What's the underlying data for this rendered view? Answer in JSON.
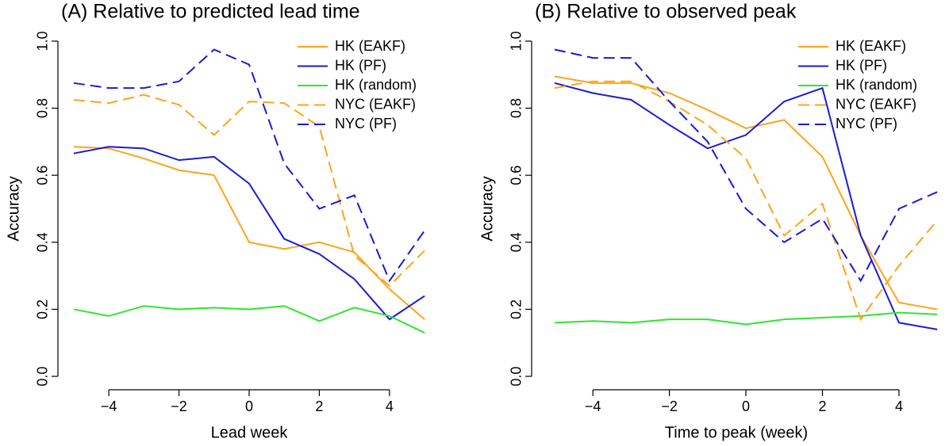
{
  "chart_data": [
    {
      "type": "line",
      "title": "(A) Relative to predicted lead time",
      "xlabel": "Lead week",
      "ylabel": "Accuracy",
      "x": [
        -5,
        -4,
        -3,
        -2,
        -1,
        0,
        1,
        2,
        3,
        4,
        5
      ],
      "xlim": [
        -5.45,
        5.45
      ],
      "ylim": [
        -0.04,
        1.04
      ],
      "xticks": [
        {
          "value": -4,
          "label": "−4"
        },
        {
          "value": -2,
          "label": "−2"
        },
        0,
        2,
        4
      ],
      "yticks": [
        {
          "value": 0,
          "label": "0.0"
        },
        0.2,
        0.4,
        0.6,
        0.8,
        {
          "value": 1,
          "label": "1.0"
        }
      ],
      "legend": "top-right",
      "series": [
        {
          "name": "HK (EAKF)",
          "color": "#ffa31a",
          "linestyle": "solid",
          "values": [
            0.685,
            0.68,
            0.65,
            0.615,
            0.6,
            0.4,
            0.38,
            0.4,
            0.37,
            0.26,
            0.17
          ]
        },
        {
          "name": "HK (PF)",
          "color": "#1a1adb",
          "linestyle": "solid",
          "values": [
            0.665,
            0.685,
            0.68,
            0.645,
            0.655,
            0.575,
            0.41,
            0.365,
            0.29,
            0.17,
            0.24
          ]
        },
        {
          "name": "HK (random)",
          "color": "#2ee62e",
          "linestyle": "solid",
          "values": [
            0.2,
            0.18,
            0.21,
            0.2,
            0.205,
            0.2,
            0.21,
            0.165,
            0.205,
            0.18,
            0.13
          ]
        },
        {
          "name": "NYC (EAKF)",
          "color": "#ffa31a",
          "linestyle": "dashed",
          "values": [
            0.825,
            0.815,
            0.84,
            0.81,
            0.72,
            0.82,
            0.815,
            0.745,
            0.36,
            0.27,
            0.375
          ]
        },
        {
          "name": "NYC (PF)",
          "color": "#1a1adb",
          "linestyle": "dashed",
          "values": [
            0.875,
            0.86,
            0.86,
            0.88,
            0.975,
            0.93,
            0.635,
            0.5,
            0.54,
            0.285,
            0.435
          ]
        }
      ]
    },
    {
      "type": "line",
      "title": "(B) Relative to observed peak",
      "xlabel": "Time to peak (week)",
      "ylabel": "Accuracy",
      "x": [
        -5,
        -4,
        -3,
        -2,
        -1,
        0,
        1,
        2,
        3,
        4,
        5
      ],
      "xlim": [
        -5.6,
        5.1
      ],
      "ylim": [
        -0.04,
        1.04
      ],
      "xticks": [
        {
          "value": -4,
          "label": "−4"
        },
        {
          "value": -2,
          "label": "−2"
        },
        0,
        2,
        4
      ],
      "yticks": [
        {
          "value": 0,
          "label": "0.0"
        },
        0.2,
        0.4,
        0.6,
        0.8,
        {
          "value": 1,
          "label": "1.0"
        }
      ],
      "legend": "top-right",
      "series": [
        {
          "name": "HK (EAKF)",
          "color": "#ffa31a",
          "linestyle": "solid",
          "values": [
            0.895,
            0.875,
            0.875,
            0.845,
            0.795,
            0.74,
            0.765,
            0.655,
            0.42,
            0.22,
            0.2
          ]
        },
        {
          "name": "HK (PF)",
          "color": "#1a1adb",
          "linestyle": "solid",
          "values": [
            0.875,
            0.845,
            0.825,
            0.75,
            0.68,
            0.72,
            0.82,
            0.86,
            0.42,
            0.16,
            0.14
          ]
        },
        {
          "name": "HK (random)",
          "color": "#2ee62e",
          "linestyle": "solid",
          "values": [
            0.16,
            0.165,
            0.16,
            0.17,
            0.17,
            0.155,
            0.17,
            0.175,
            0.18,
            0.19,
            0.185
          ]
        },
        {
          "name": "NYC (EAKF)",
          "color": "#ffa31a",
          "linestyle": "dashed",
          "values": [
            0.86,
            0.88,
            0.88,
            0.82,
            0.75,
            0.65,
            0.42,
            0.515,
            0.17,
            0.33,
            0.465
          ]
        },
        {
          "name": "NYC (PF)",
          "color": "#1a1adb",
          "linestyle": "dashed",
          "values": [
            0.975,
            0.95,
            0.95,
            0.82,
            0.7,
            0.5,
            0.4,
            0.47,
            0.285,
            0.5,
            0.55
          ]
        }
      ]
    }
  ]
}
